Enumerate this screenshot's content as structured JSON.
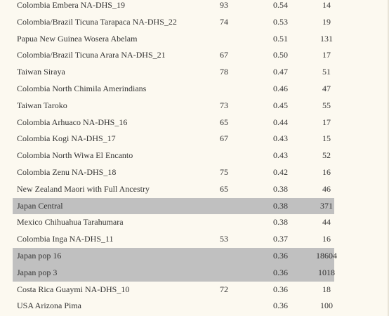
{
  "table": {
    "rows": [
      {
        "name": "Colombia Embera NA-DHS_19",
        "col1": "93",
        "col2": "0.54",
        "col3": "14",
        "highlight": false
      },
      {
        "name": "Colombia/Brazil Ticuna Tarapaca NA-DHS_22",
        "col1": "74",
        "col2": "0.53",
        "col3": "19",
        "highlight": false
      },
      {
        "name": "Papua New Guinea Wosera Abelam",
        "col1": "",
        "col2": "0.51",
        "col3": "131",
        "highlight": false
      },
      {
        "name": "Colombia/Brazil Ticuna Arara NA-DHS_21",
        "col1": "67",
        "col2": "0.50",
        "col3": "17",
        "highlight": false
      },
      {
        "name": "Taiwan Siraya",
        "col1": "78",
        "col2": "0.47",
        "col3": "51",
        "highlight": false
      },
      {
        "name": "Colombia North Chimila Amerindians",
        "col1": "",
        "col2": "0.46",
        "col3": "47",
        "highlight": false
      },
      {
        "name": "Taiwan Taroko",
        "col1": "73",
        "col2": "0.45",
        "col3": "55",
        "highlight": false
      },
      {
        "name": "Colombia Arhuaco NA-DHS_16",
        "col1": "65",
        "col2": "0.44",
        "col3": "17",
        "highlight": false
      },
      {
        "name": "Colombia Kogi NA-DHS_17",
        "col1": "67",
        "col2": "0.43",
        "col3": "15",
        "highlight": false
      },
      {
        "name": "Colombia North Wiwa El Encanto",
        "col1": "",
        "col2": "0.43",
        "col3": "52",
        "highlight": false
      },
      {
        "name": "Colombia Zenu NA-DHS_18",
        "col1": "75",
        "col2": "0.42",
        "col3": "16",
        "highlight": false
      },
      {
        "name": "New Zealand Maori with Full Ancestry",
        "col1": "65",
        "col2": "0.38",
        "col3": "46",
        "highlight": false
      },
      {
        "name": "Japan Central",
        "col1": "",
        "col2": "0.38",
        "col3": "371",
        "highlight": true
      },
      {
        "name": "Mexico Chihuahua Tarahumara",
        "col1": "",
        "col2": "0.38",
        "col3": "44",
        "highlight": false
      },
      {
        "name": "Colombia Inga NA-DHS_11",
        "col1": "53",
        "col2": "0.37",
        "col3": "16",
        "highlight": false
      },
      {
        "name": "Japan pop 16",
        "col1": "",
        "col2": "0.36",
        "col3": "18604",
        "highlight": true
      },
      {
        "name": "Japan pop 3",
        "col1": "",
        "col2": "0.36",
        "col3": "1018",
        "highlight": true
      },
      {
        "name": "Costa Rica Guaymi NA-DHS_10",
        "col1": "72",
        "col2": "0.36",
        "col3": "18",
        "highlight": false
      },
      {
        "name": "USA Arizona Pima",
        "col1": "",
        "col2": "0.36",
        "col3": "100",
        "highlight": false
      }
    ]
  }
}
